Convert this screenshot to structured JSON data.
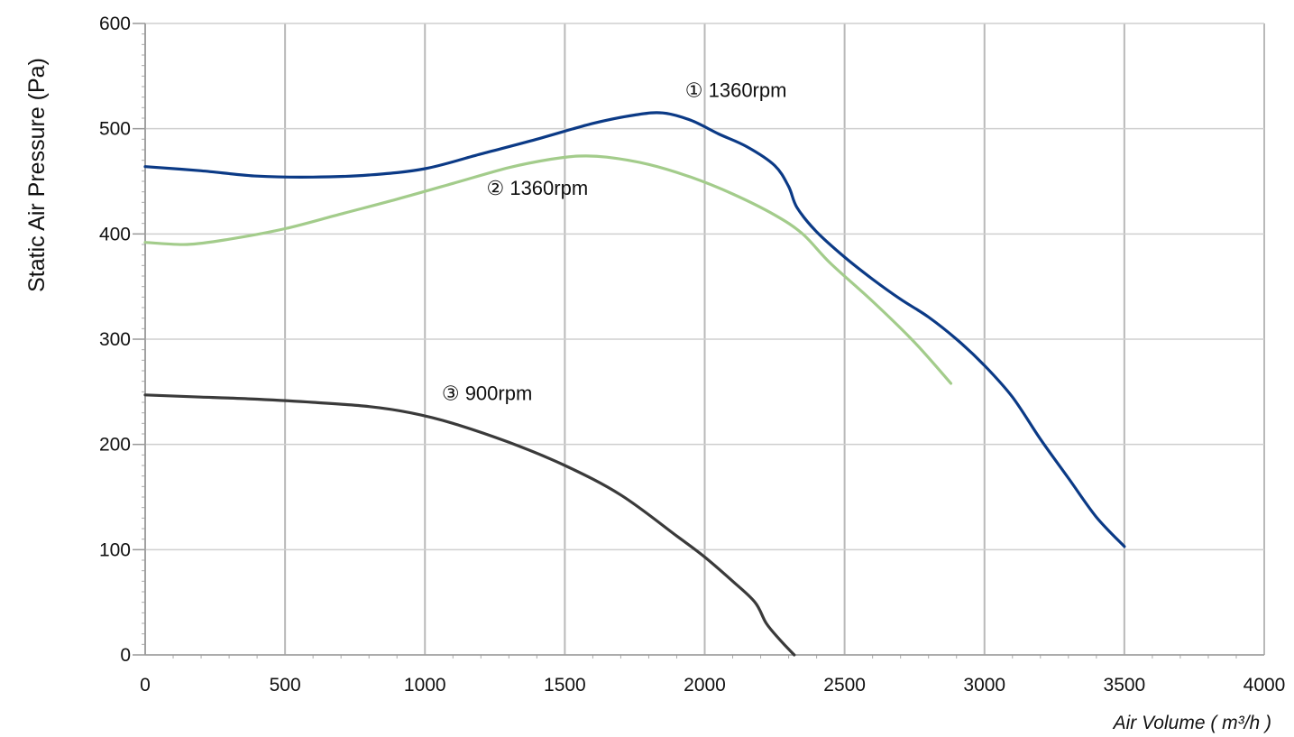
{
  "chart_data": {
    "type": "line",
    "title": "",
    "xlabel": "Air Volume ( m³/h )",
    "ylabel": "Static Air Pressure  (Pa)",
    "xlim": [
      0,
      4000
    ],
    "ylim": [
      0,
      600
    ],
    "x_ticks": [
      "0",
      "500",
      "1000",
      "1500",
      "2000",
      "2500",
      "3000",
      "3500",
      "4000"
    ],
    "y_ticks": [
      "0",
      "100",
      "200",
      "300",
      "400",
      "500",
      "600"
    ],
    "grid": true,
    "legend": "inline labels",
    "series": [
      {
        "name": "① 1360rpm",
        "color": "#0b3a86",
        "label_at": [
          1930,
          530
        ],
        "points": [
          [
            0,
            464
          ],
          [
            200,
            460
          ],
          [
            400,
            455
          ],
          [
            600,
            454
          ],
          [
            800,
            456
          ],
          [
            1000,
            462
          ],
          [
            1200,
            476
          ],
          [
            1400,
            490
          ],
          [
            1600,
            505
          ],
          [
            1750,
            513
          ],
          [
            1850,
            515
          ],
          [
            1950,
            508
          ],
          [
            2050,
            495
          ],
          [
            2150,
            483
          ],
          [
            2250,
            465
          ],
          [
            2300,
            445
          ],
          [
            2330,
            425
          ],
          [
            2400,
            402
          ],
          [
            2500,
            378
          ],
          [
            2600,
            357
          ],
          [
            2700,
            338
          ],
          [
            2800,
            321
          ],
          [
            2900,
            300
          ],
          [
            3000,
            275
          ],
          [
            3100,
            245
          ],
          [
            3200,
            205
          ],
          [
            3300,
            168
          ],
          [
            3400,
            131
          ],
          [
            3500,
            103
          ]
        ]
      },
      {
        "name": "② 1360rpm",
        "color": "#a3cc8b",
        "label_at": [
          1220,
          437
        ],
        "points": [
          [
            0,
            392
          ],
          [
            150,
            390
          ],
          [
            300,
            395
          ],
          [
            500,
            405
          ],
          [
            700,
            419
          ],
          [
            900,
            433
          ],
          [
            1100,
            448
          ],
          [
            1300,
            463
          ],
          [
            1450,
            471
          ],
          [
            1550,
            474
          ],
          [
            1650,
            473
          ],
          [
            1800,
            466
          ],
          [
            1950,
            454
          ],
          [
            2100,
            438
          ],
          [
            2250,
            418
          ],
          [
            2350,
            400
          ],
          [
            2450,
            372
          ],
          [
            2600,
            336
          ],
          [
            2750,
            297
          ],
          [
            2880,
            258
          ]
        ]
      },
      {
        "name": "③ 900rpm",
        "color": "#3a3a3a",
        "label_at": [
          1060,
          242
        ],
        "points": [
          [
            0,
            247
          ],
          [
            200,
            245
          ],
          [
            400,
            243
          ],
          [
            600,
            240
          ],
          [
            800,
            236
          ],
          [
            950,
            230
          ],
          [
            1100,
            220
          ],
          [
            1300,
            202
          ],
          [
            1500,
            180
          ],
          [
            1700,
            152
          ],
          [
            1900,
            113
          ],
          [
            2000,
            93
          ],
          [
            2100,
            70
          ],
          [
            2180,
            50
          ],
          [
            2220,
            30
          ],
          [
            2270,
            14
          ],
          [
            2320,
            0
          ]
        ]
      }
    ]
  }
}
